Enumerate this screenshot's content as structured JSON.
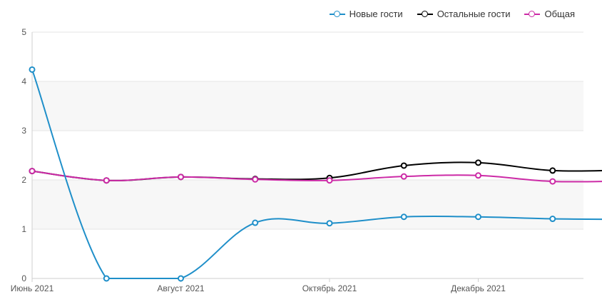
{
  "chart_data": {
    "type": "line",
    "x": [
      "2021-06",
      "2021-07",
      "2021-08",
      "2021-09",
      "2021-10",
      "2021-11",
      "2021-12",
      "2022-01",
      "2022-02"
    ],
    "xticks": [
      {
        "x": "2021-06",
        "label": "Июнь 2021"
      },
      {
        "x": "2021-08",
        "label": "Август 2021"
      },
      {
        "x": "2021-10",
        "label": "Октябрь 2021"
      },
      {
        "x": "2021-12",
        "label": "Декабрь 2021"
      }
    ],
    "ylim": [
      0,
      5
    ],
    "yticks": [
      0,
      1,
      2,
      3,
      4,
      5
    ],
    "grid": true,
    "legend_position": "top-right",
    "series": [
      {
        "name": "Новые гости",
        "color": "#1f8fc9",
        "values": [
          4.24,
          0.0,
          0.0,
          1.13,
          1.12,
          1.25,
          1.25,
          1.21,
          1.2
        ]
      },
      {
        "name": "Остальные гости",
        "color": "#000000",
        "values": [
          2.18,
          1.99,
          2.06,
          2.02,
          2.04,
          2.29,
          2.35,
          2.19,
          2.2
        ]
      },
      {
        "name": "Общая",
        "color": "#cc2aa6",
        "values": [
          2.18,
          1.99,
          2.06,
          2.01,
          1.99,
          2.07,
          2.09,
          1.97,
          1.98
        ]
      }
    ]
  }
}
